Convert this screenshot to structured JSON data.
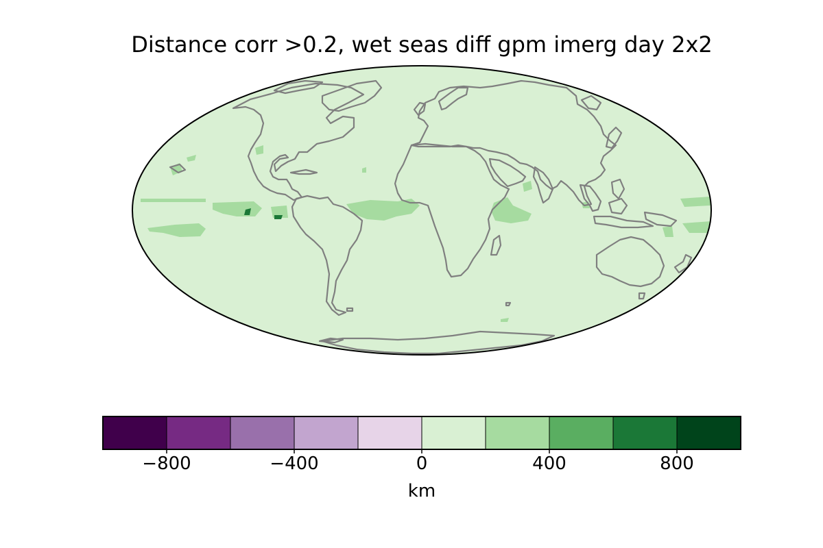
{
  "map": {
    "title": "Distance corr >0.2, wet seas diff gpm imerg day 2x2",
    "projection": "mollweide",
    "background_color": "#d9f0d3",
    "coastline_color": "#7f7f7f",
    "border_color": "#000000",
    "highlight_patches": [
      {
        "region": "eastern tropical Pacific band",
        "level": "200 to 400 km"
      },
      {
        "region": "central tropical Pacific near equator",
        "level": "200 to 400 km"
      },
      {
        "region": "tropical Atlantic north of Brazil",
        "level": "200 to 400 km"
      },
      {
        "region": "western Indian Ocean near equator",
        "level": "200 to 400 km"
      },
      {
        "region": "Arabian Sea",
        "level": "200 to 400 km"
      },
      {
        "region": "western tropical Pacific",
        "level": "200 to 400 km"
      },
      {
        "region": "Gulf of Mexico coast",
        "level": "200 to 400 km"
      }
    ]
  },
  "colorbar": {
    "unit": "km",
    "range": [
      -1000,
      1000
    ],
    "bin_edges": [
      -1000,
      -800,
      -600,
      -400,
      -200,
      0,
      200,
      400,
      600,
      800,
      1000
    ],
    "bin_colors": [
      "#40004b",
      "#762a83",
      "#9970ab",
      "#c2a5cf",
      "#e7d4e8",
      "#d9f0d3",
      "#a6dba0",
      "#5aae61",
      "#1b7837",
      "#00441b"
    ],
    "ticks": [
      {
        "value": -800,
        "label": "−800"
      },
      {
        "value": -400,
        "label": "−400"
      },
      {
        "value": 0,
        "label": "0"
      },
      {
        "value": 400,
        "label": "400"
      },
      {
        "value": 800,
        "label": "800"
      }
    ]
  }
}
